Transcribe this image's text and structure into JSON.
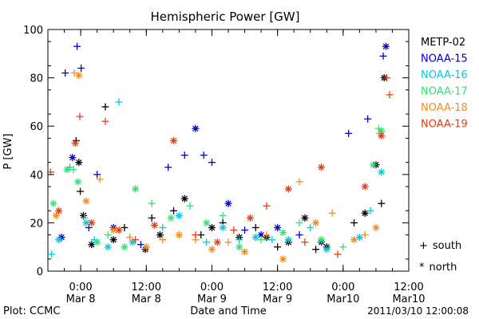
{
  "chart_data": {
    "type": "scatter",
    "title": "Hemispheric Power [GW]",
    "xlabel": "Date and Time",
    "ylabel": "P [GW]",
    "ylim": [
      0,
      100
    ],
    "yticks": [
      0,
      20,
      40,
      60,
      80,
      100
    ],
    "xlim": [
      "2011-03-07T18:00",
      "2011-03-10T12:00"
    ],
    "xticks": [
      {
        "t": "2011-03-08T00:00",
        "time": "0:00",
        "date": "Mar 8"
      },
      {
        "t": "2011-03-08T12:00",
        "time": "12:00",
        "date": "Mar 8"
      },
      {
        "t": "2011-03-09T00:00",
        "time": "0:00",
        "date": "Mar 9"
      },
      {
        "t": "2011-03-09T12:00",
        "time": "12:00",
        "date": "Mar 9"
      },
      {
        "t": "2011-03-10T00:00",
        "time": "0:00",
        "date": "Mar10"
      },
      {
        "t": "2011-03-10T12:00",
        "time": "12:00",
        "date": "Mar10"
      }
    ],
    "grid": false,
    "legend_placement": "right",
    "series": [
      {
        "name": "METP-02",
        "color": "#000000",
        "points": [
          [
            "2011-03-07T23:10",
            "+",
            54
          ],
          [
            "2011-03-07T23:40",
            "*",
            45
          ],
          [
            "2011-03-07T23:55",
            "+",
            33
          ],
          [
            "2011-03-08T00:30",
            "*",
            23
          ],
          [
            "2011-03-08T02:00",
            "*",
            11
          ],
          [
            "2011-03-08T04:30",
            "+",
            68
          ],
          [
            "2011-03-08T06:00",
            "*",
            13
          ],
          [
            "2011-03-08T08:00",
            "+",
            18
          ],
          [
            "2011-03-08T11:50",
            "*",
            9
          ],
          [
            "2011-03-08T13:00",
            "+",
            22
          ],
          [
            "2011-03-08T14:30",
            "*",
            15
          ],
          [
            "2011-03-08T17:00",
            "+",
            25
          ],
          [
            "2011-03-08T19:00",
            "*",
            30
          ],
          [
            "2011-03-08T22:00",
            "+",
            15
          ],
          [
            "2011-03-09T00:00",
            "*",
            18
          ],
          [
            "2011-03-09T02:00",
            "+",
            20
          ],
          [
            "2011-03-09T05:00",
            "*",
            14
          ],
          [
            "2011-03-09T08:00",
            "+",
            18
          ],
          [
            "2011-03-09T10:00",
            "*",
            14
          ],
          [
            "2011-03-09T12:00",
            "+",
            10
          ],
          [
            "2011-03-09T14:00",
            "*",
            12
          ],
          [
            "2011-03-09T17:00",
            "*",
            22
          ],
          [
            "2011-03-09T19:00",
            "+",
            9
          ],
          [
            "2011-03-09T21:00",
            "*",
            10
          ],
          [
            "2011-03-10T02:00",
            "+",
            20
          ],
          [
            "2011-03-10T04:00",
            "*",
            24
          ],
          [
            "2011-03-10T06:00",
            "*",
            44
          ],
          [
            "2011-03-10T07:00",
            "+",
            28
          ],
          [
            "2011-03-10T07:30",
            "*",
            80
          ]
        ]
      },
      {
        "name": "NOAA-15",
        "color": "#0000cc",
        "points": [
          [
            "2011-03-07T21:10",
            "+",
            82
          ],
          [
            "2011-03-07T22:30",
            "*",
            47
          ],
          [
            "2011-03-07T23:20",
            "+",
            93
          ],
          [
            "2011-03-08T00:05",
            "+",
            84
          ],
          [
            "2011-03-07T20:30",
            "*",
            14
          ],
          [
            "2011-03-08T01:30",
            "+",
            18
          ],
          [
            "2011-03-08T03:00",
            "+",
            40
          ],
          [
            "2011-03-08T06:00",
            "*",
            18
          ],
          [
            "2011-03-08T11:00",
            "+",
            11
          ],
          [
            "2011-03-08T16:00",
            "+",
            43
          ],
          [
            "2011-03-08T19:00",
            "+",
            48
          ],
          [
            "2011-03-08T21:00",
            "*",
            59
          ],
          [
            "2011-03-08T22:30",
            "+",
            48
          ],
          [
            "2011-03-09T00:00",
            "+",
            45
          ],
          [
            "2011-03-09T03:00",
            "*",
            28
          ],
          [
            "2011-03-09T06:00",
            "+",
            17
          ],
          [
            "2011-03-09T09:00",
            "*",
            15
          ],
          [
            "2011-03-09T12:00",
            "*",
            18
          ],
          [
            "2011-03-09T16:00",
            "+",
            15
          ],
          [
            "2011-03-09T20:00",
            "*",
            12
          ],
          [
            "2011-03-10T01:00",
            "+",
            57
          ],
          [
            "2011-03-10T04:30",
            "+",
            63
          ],
          [
            "2011-03-10T07:20",
            "+",
            89
          ],
          [
            "2011-03-10T07:50",
            "*",
            93
          ]
        ]
      },
      {
        "name": "NOAA-16",
        "color": "#00c8e6",
        "points": [
          [
            "2011-03-07T18:40",
            "+",
            7
          ],
          [
            "2011-03-07T20:00",
            "*",
            13
          ],
          [
            "2011-03-07T22:00",
            "+",
            43
          ],
          [
            "2011-03-08T01:00",
            "*",
            20
          ],
          [
            "2011-03-08T02:30",
            "+",
            13
          ],
          [
            "2011-03-08T05:00",
            "*",
            10
          ],
          [
            "2011-03-08T07:00",
            "+",
            70
          ],
          [
            "2011-03-08T09:30",
            "*",
            12
          ],
          [
            "2011-03-08T15:00",
            "+",
            18
          ],
          [
            "2011-03-08T18:00",
            "*",
            23
          ],
          [
            "2011-03-08T23:00",
            "+",
            12
          ],
          [
            "2011-03-09T02:00",
            "*",
            18
          ],
          [
            "2011-03-09T05:00",
            "+",
            13
          ],
          [
            "2011-03-09T08:00",
            "*",
            14
          ],
          [
            "2011-03-09T11:00",
            "+",
            13
          ],
          [
            "2011-03-09T14:00",
            "*",
            13
          ],
          [
            "2011-03-09T18:00",
            "+",
            18
          ],
          [
            "2011-03-09T21:00",
            "*",
            9
          ],
          [
            "2011-03-10T03:00",
            "*",
            14
          ],
          [
            "2011-03-10T05:00",
            "+",
            25
          ],
          [
            "2011-03-10T07:00",
            "*",
            41
          ]
        ]
      },
      {
        "name": "NOAA-17",
        "color": "#2ee66e",
        "points": [
          [
            "2011-03-07T19:00",
            "*",
            28
          ],
          [
            "2011-03-07T21:30",
            "*",
            42
          ],
          [
            "2011-03-07T22:40",
            "+",
            42
          ],
          [
            "2011-03-07T23:30",
            "*",
            37
          ],
          [
            "2011-03-08T00:40",
            "+",
            22
          ],
          [
            "2011-03-08T03:00",
            "*",
            12
          ],
          [
            "2011-03-08T05:00",
            "+",
            15
          ],
          [
            "2011-03-08T08:00",
            "*",
            10
          ],
          [
            "2011-03-08T10:00",
            "*",
            34
          ],
          [
            "2011-03-08T13:00",
            "+",
            28
          ],
          [
            "2011-03-08T16:30",
            "*",
            22
          ],
          [
            "2011-03-08T20:00",
            "+",
            27
          ],
          [
            "2011-03-08T23:00",
            "*",
            20
          ],
          [
            "2011-03-09T02:00",
            "+",
            23
          ],
          [
            "2011-03-09T05:00",
            "*",
            10
          ],
          [
            "2011-03-09T09:00",
            "+",
            13
          ],
          [
            "2011-03-09T13:00",
            "*",
            16
          ],
          [
            "2011-03-09T16:00",
            "+",
            20
          ],
          [
            "2011-03-09T20:00",
            "*",
            13
          ],
          [
            "2011-03-10T00:00",
            "+",
            10
          ],
          [
            "2011-03-10T05:30",
            "*",
            44
          ],
          [
            "2011-03-10T06:30",
            "+",
            59
          ],
          [
            "2011-03-10T07:00",
            "*",
            58
          ]
        ]
      },
      {
        "name": "NOAA-18",
        "color": "#f08c1e",
        "points": [
          [
            "2011-03-07T19:30",
            "*",
            23
          ],
          [
            "2011-03-07T22:50",
            "+",
            82
          ],
          [
            "2011-03-07T23:40",
            "*",
            81
          ],
          [
            "2011-03-08T01:00",
            "*",
            29
          ],
          [
            "2011-03-08T03:30",
            "+",
            38
          ],
          [
            "2011-03-08T06:00",
            "*",
            17
          ],
          [
            "2011-03-08T09:00",
            "+",
            14
          ],
          [
            "2011-03-08T12:00",
            "*",
            10
          ],
          [
            "2011-03-08T15:00",
            "+",
            13
          ],
          [
            "2011-03-08T18:00",
            "*",
            15
          ],
          [
            "2011-03-08T21:00",
            "+",
            13
          ],
          [
            "2011-03-09T00:00",
            "*",
            9
          ],
          [
            "2011-03-09T03:00",
            "+",
            12
          ],
          [
            "2011-03-09T06:00",
            "*",
            8
          ],
          [
            "2011-03-09T10:00",
            "+",
            15
          ],
          [
            "2011-03-09T13:00",
            "*",
            5
          ],
          [
            "2011-03-09T16:00",
            "+",
            37
          ],
          [
            "2011-03-09T19:00",
            "*",
            20
          ],
          [
            "2011-03-09T22:00",
            "+",
            24
          ],
          [
            "2011-03-10T02:00",
            "*",
            13
          ],
          [
            "2011-03-10T04:00",
            "+",
            15
          ],
          [
            "2011-03-10T06:00",
            "*",
            18
          ],
          [
            "2011-03-10T06:40",
            "+",
            57
          ]
        ]
      },
      {
        "name": "NOAA-19",
        "color": "#e63c14",
        "points": [
          [
            "2011-03-07T18:30",
            "+",
            41
          ],
          [
            "2011-03-07T20:00",
            "*",
            25
          ],
          [
            "2011-03-07T23:00",
            "*",
            53
          ],
          [
            "2011-03-07T23:50",
            "+",
            64
          ],
          [
            "2011-03-08T02:00",
            "*",
            20
          ],
          [
            "2011-03-08T04:30",
            "+",
            62
          ],
          [
            "2011-03-08T07:00",
            "*",
            17
          ],
          [
            "2011-03-08T10:00",
            "+",
            13
          ],
          [
            "2011-03-08T13:30",
            "*",
            19
          ],
          [
            "2011-03-08T17:00",
            "*",
            54
          ],
          [
            "2011-03-08T21:00",
            "+",
            15
          ],
          [
            "2011-03-09T01:00",
            "*",
            12
          ],
          [
            "2011-03-09T04:00",
            "+",
            17
          ],
          [
            "2011-03-09T07:00",
            "*",
            22
          ],
          [
            "2011-03-09T10:00",
            "+",
            27
          ],
          [
            "2011-03-09T14:00",
            "*",
            34
          ],
          [
            "2011-03-09T17:00",
            "+",
            12
          ],
          [
            "2011-03-09T20:00",
            "*",
            43
          ],
          [
            "2011-03-09T23:00",
            "+",
            7
          ],
          [
            "2011-03-10T04:00",
            "*",
            35
          ],
          [
            "2011-03-10T07:00",
            "*",
            56
          ],
          [
            "2011-03-10T08:00",
            "+",
            80
          ],
          [
            "2011-03-10T08:30",
            "+",
            73
          ]
        ]
      }
    ],
    "marker_legend": [
      {
        "symbol": "+",
        "label": "south"
      },
      {
        "symbol": "*",
        "label": "north"
      }
    ]
  },
  "footer": {
    "plot_source": "Plot: CCMC",
    "timestamp": "2011/03/10 12:00:08"
  }
}
